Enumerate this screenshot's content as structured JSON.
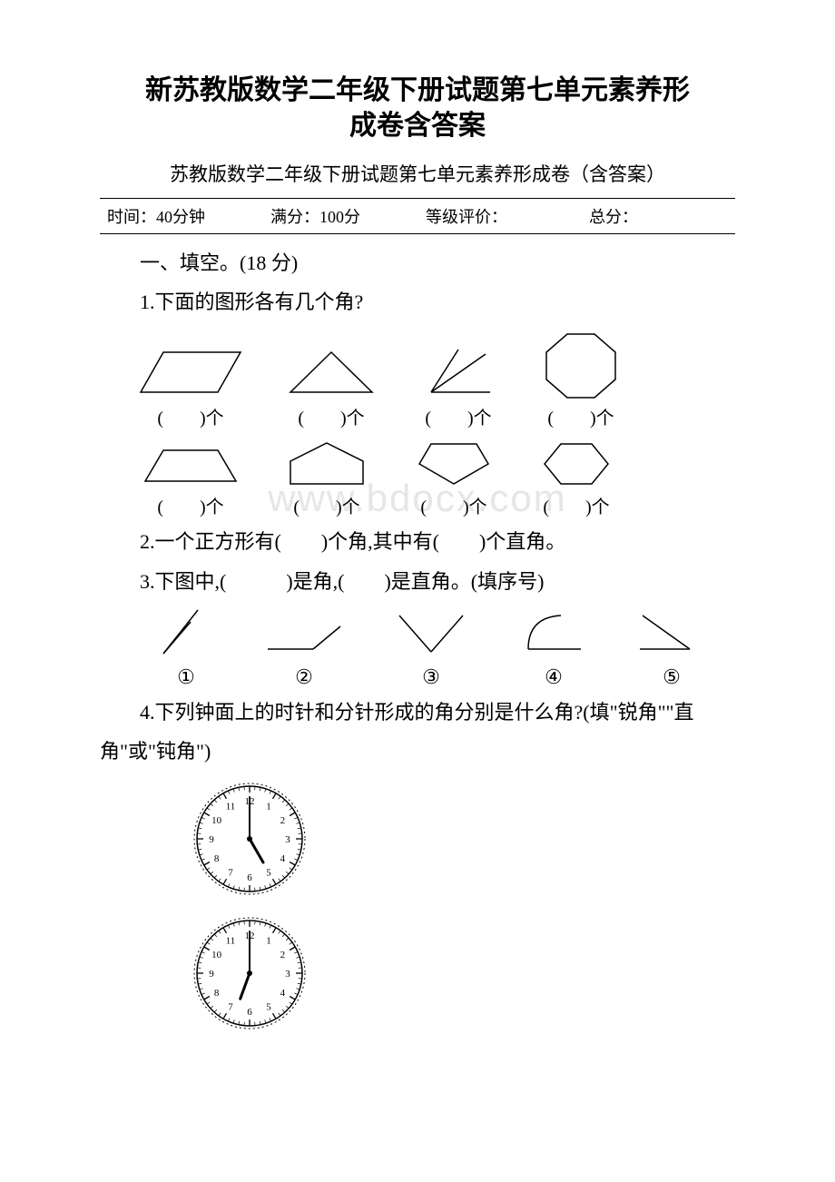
{
  "title_line1": "新苏教版数学二年级下册试题第七单元素养形",
  "title_line2": "成卷含答案",
  "title_fontsize": 30,
  "subtitle": "苏教版数学二年级下册试题第七单元素养形成卷（含答案）",
  "subtitle_fontsize": 21,
  "body_fontsize": 22,
  "text_color": "#000000",
  "background_color": "#ffffff",
  "watermark_text": "www.bdocx.com",
  "watermark_color": "#e6e6e6",
  "info_bar": {
    "time_label": "时间：",
    "time_value": "40分钟",
    "full_label": "满分：",
    "full_value": "100分",
    "grade_label": "等级评价：",
    "total_label": "总分：",
    "fontsize": 18
  },
  "section1_heading": "一、填空。(18 分)",
  "q1_text": "1.下面的图形各有几个角?",
  "blank_unit": "(　　)个",
  "shapes_row1": [
    {
      "type": "parallelogram",
      "stroke": "#000000"
    },
    {
      "type": "triangle",
      "stroke": "#000000"
    },
    {
      "type": "angle-two-rays",
      "stroke": "#000000"
    },
    {
      "type": "octagon",
      "stroke": "#000000"
    }
  ],
  "shapes_row2": [
    {
      "type": "trapezoid",
      "stroke": "#000000"
    },
    {
      "type": "pentagon-house",
      "stroke": "#000000"
    },
    {
      "type": "pentagon-diamond",
      "stroke": "#000000"
    },
    {
      "type": "hexagon",
      "stroke": "#000000"
    }
  ],
  "q2_text": "2.一个正方形有(　　)个角,其中有(　　)个直角。",
  "q3_text": "3.下图中,(　　　)是角,(　　)是直角。(填序号)",
  "angles": [
    {
      "num": "①",
      "type": "acute-open"
    },
    {
      "num": "②",
      "type": "obtuse-line"
    },
    {
      "num": "③",
      "type": "v-shape"
    },
    {
      "num": "④",
      "type": "curve-line"
    },
    {
      "num": "⑤",
      "type": "right-angle"
    }
  ],
  "q4_line1": "4.下列钟面上的时针和分针形成的角分别是什么角?(填\"锐角\"\"直",
  "q4_line2": "角\"或\"钝角\")",
  "clocks": [
    {
      "hour_angle": 150,
      "minute_angle": 0,
      "numbers": [
        "12",
        "1",
        "2",
        "3",
        "4",
        "5",
        "6",
        "7",
        "8",
        "9",
        "10",
        "11"
      ]
    },
    {
      "hour_angle": 200,
      "minute_angle": 0,
      "numbers": [
        "12",
        "1",
        "2",
        "3",
        "4",
        "5",
        "6",
        "7",
        "8",
        "9",
        "10",
        "11"
      ]
    }
  ],
  "clock_stroke": "#000000",
  "clock_radius": 58,
  "shape_stroke_width": 1.5
}
